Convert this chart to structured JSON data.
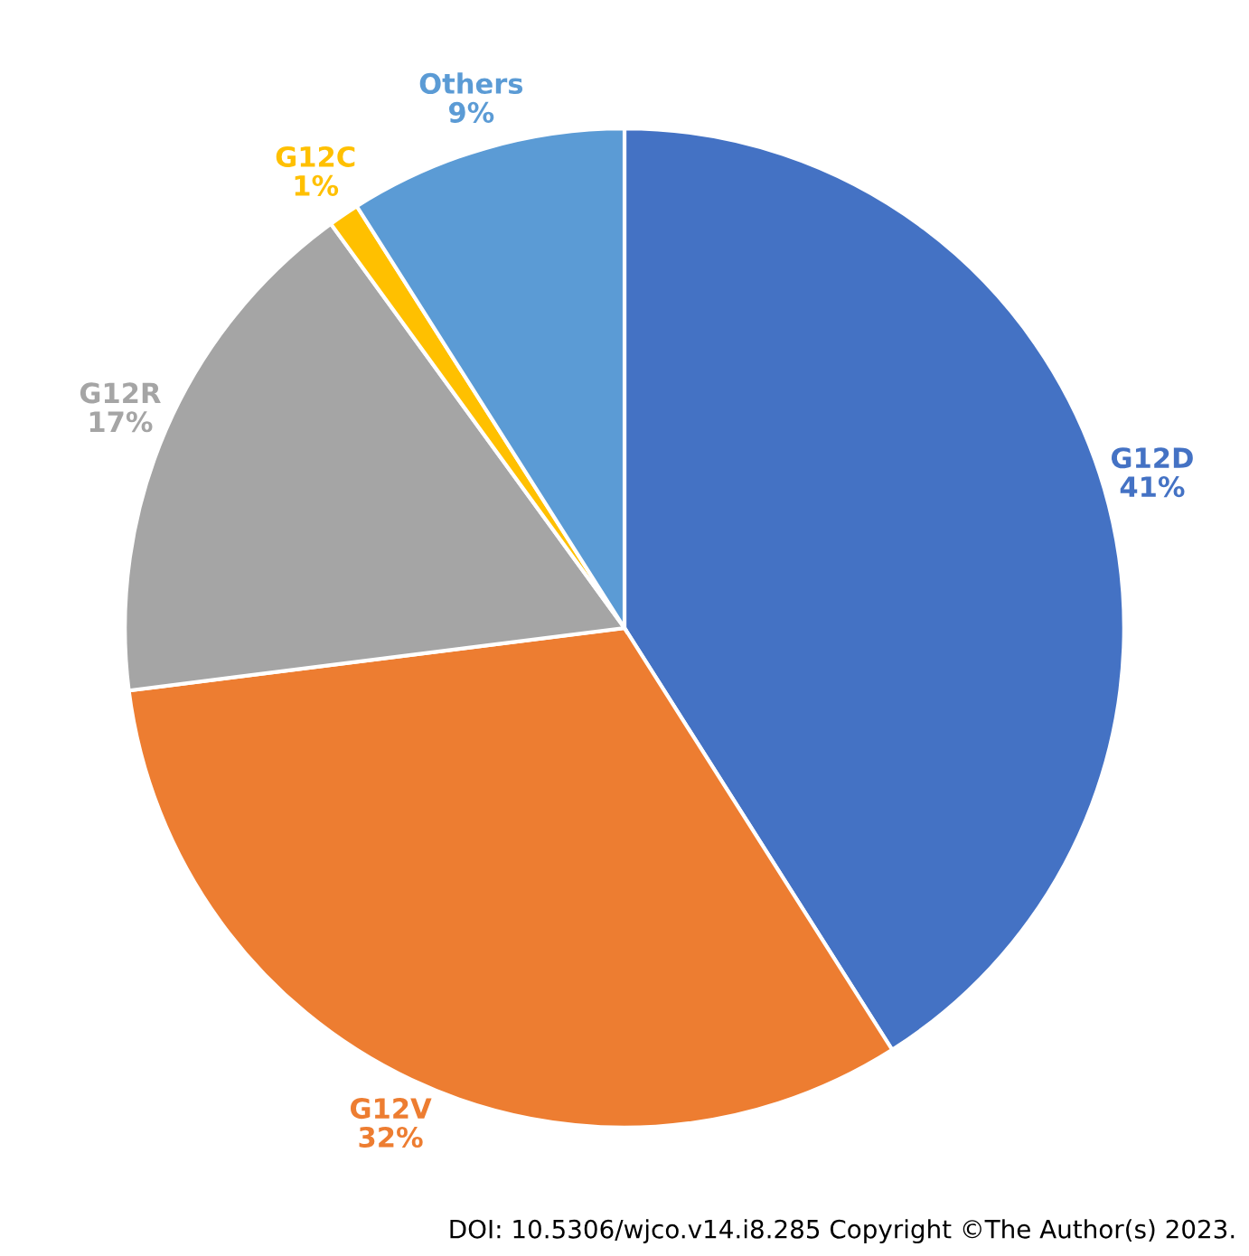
{
  "chart_data": {
    "type": "pie",
    "categories": [
      "G12D",
      "G12V",
      "G12R",
      "G12C",
      "Others"
    ],
    "values": [
      41,
      32,
      17,
      1,
      9
    ],
    "value_labels": [
      "41%",
      "32%",
      "17%",
      "1%",
      "9%"
    ],
    "colors": [
      "#4472c4",
      "#ed7d31",
      "#a5a5a5",
      "#ffc000",
      "#5b9bd5"
    ],
    "annotations": [
      "DOI: 10.5306/wjco.v14.i8.285 Copyright ©The Author(s) 2023."
    ]
  }
}
